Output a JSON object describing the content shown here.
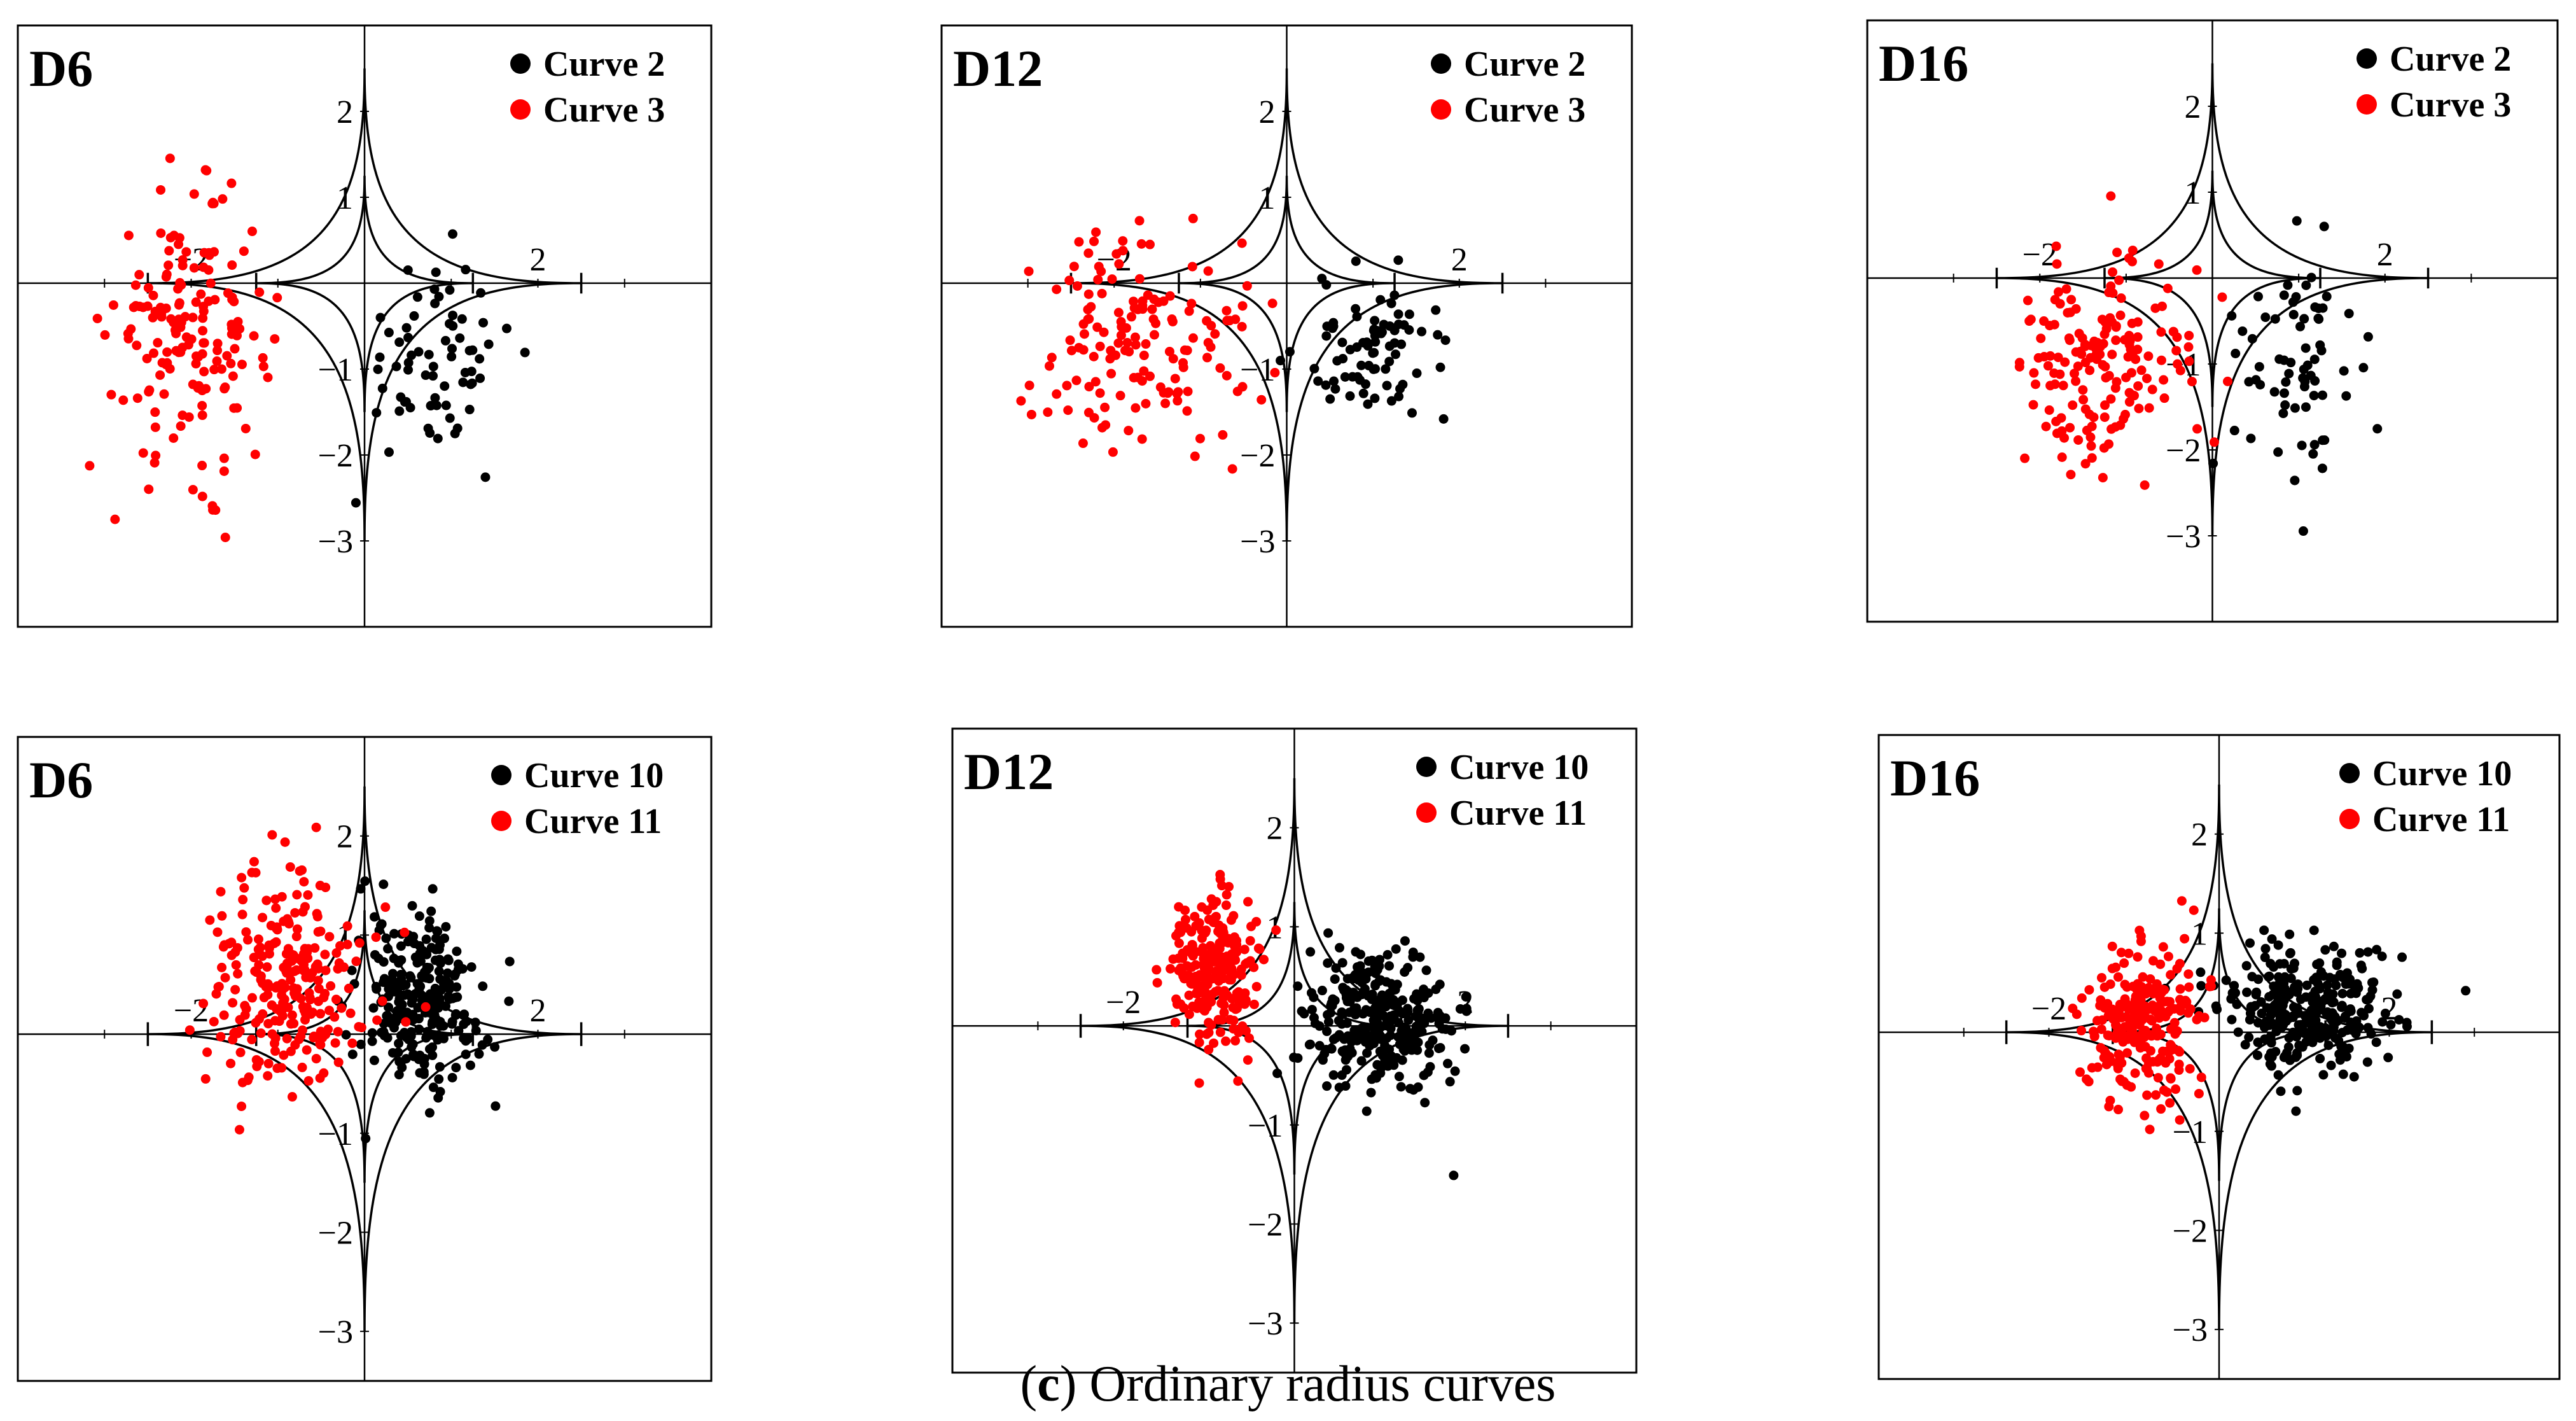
{
  "caption": {
    "letter": "c",
    "text": " Ordinary radius curves"
  },
  "colors": {
    "black_series": "#000000",
    "red_series": "#ff0000",
    "axis": "#000000"
  },
  "chart_data": [
    {
      "type": "scatter",
      "title": "D6",
      "row": 1,
      "col": 1,
      "xlim": [
        -4,
        4
      ],
      "ylim": [
        -4,
        3
      ],
      "ticks_x": [
        "−2",
        "2"
      ],
      "ticks_y": [
        "2",
        "1",
        "−1",
        "−2",
        "−3"
      ],
      "boundary": "astroid-like tolerance region (outer tips at (0,2.5),(0,-3),(±2.5,0); inner tips at (0,1.25),(0,-1.5),(±1.25,0))",
      "series": [
        {
          "name": "Curve 2",
          "color": "#000000",
          "cx": 0.8,
          "cy": -0.9,
          "sx": 0.45,
          "sy": 0.6,
          "n": 70
        },
        {
          "name": "Curve 3",
          "color": "#ff0000",
          "cx": -2.0,
          "cy": -0.6,
          "sx": 0.45,
          "sy": 0.75,
          "n": 170
        }
      ]
    },
    {
      "type": "scatter",
      "title": "D12",
      "row": 1,
      "col": 2,
      "xlim": [
        -4,
        4
      ],
      "ylim": [
        -4,
        3
      ],
      "ticks_x": [
        "−2",
        "2"
      ],
      "ticks_y": [
        "2",
        "1",
        "−1",
        "−2",
        "−3"
      ],
      "boundary": "astroid-like tolerance region",
      "series": [
        {
          "name": "Curve 2",
          "color": "#000000",
          "cx": 1.0,
          "cy": -0.8,
          "sx": 0.45,
          "sy": 0.4,
          "n": 80
        },
        {
          "name": "Curve 3",
          "color": "#ff0000",
          "cx": -1.6,
          "cy": -0.7,
          "sx": 0.6,
          "sy": 0.7,
          "n": 150
        }
      ]
    },
    {
      "type": "scatter",
      "title": "D16",
      "row": 1,
      "col": 3,
      "xlim": [
        -4,
        4
      ],
      "ylim": [
        -4,
        3
      ],
      "ticks_x": [
        "−2",
        "2"
      ],
      "ticks_y": [
        "2",
        "1",
        "−1",
        "−2",
        "−3"
      ],
      "boundary": "astroid-like tolerance region",
      "series": [
        {
          "name": "Curve 2",
          "color": "#000000",
          "cx": 0.9,
          "cy": -1.1,
          "sx": 0.35,
          "sy": 0.65,
          "n": 70
        },
        {
          "name": "Curve 3",
          "color": "#ff0000",
          "cx": -1.3,
          "cy": -1.0,
          "sx": 0.5,
          "sy": 0.65,
          "n": 170
        }
      ]
    },
    {
      "type": "scatter",
      "title": "D6",
      "row": 2,
      "col": 1,
      "xlim": [
        -4,
        4
      ],
      "ylim": [
        -3.5,
        3
      ],
      "ticks_x": [
        "−2",
        "2"
      ],
      "ticks_y": [
        "2",
        "1",
        "−1",
        "−2",
        "−3"
      ],
      "boundary": "astroid-like tolerance region",
      "series": [
        {
          "name": "Curve 10",
          "color": "#000000",
          "cx": 0.65,
          "cy": 0.35,
          "sx": 0.35,
          "sy": 0.45,
          "n": 260
        },
        {
          "name": "Curve 11",
          "color": "#ff0000",
          "cx": -0.9,
          "cy": 0.5,
          "sx": 0.45,
          "sy": 0.55,
          "n": 260
        }
      ]
    },
    {
      "type": "scatter",
      "title": "D12",
      "row": 2,
      "col": 2,
      "xlim": [
        -4,
        4
      ],
      "ylim": [
        -3.5,
        3
      ],
      "ticks_x": [
        "−2",
        "2"
      ],
      "ticks_y": [
        "2",
        "1",
        "−1",
        "−2",
        "−3"
      ],
      "boundary": "astroid-like tolerance region",
      "series": [
        {
          "name": "Curve 10",
          "color": "#000000",
          "cx": 1.0,
          "cy": 0.05,
          "sx": 0.45,
          "sy": 0.35,
          "n": 300
        },
        {
          "name": "Curve 11",
          "color": "#ff0000",
          "cx": -0.95,
          "cy": 0.55,
          "sx": 0.28,
          "sy": 0.4,
          "n": 240
        }
      ]
    },
    {
      "type": "scatter",
      "title": "D16",
      "row": 2,
      "col": 3,
      "xlim": [
        -4,
        4
      ],
      "ylim": [
        -3.5,
        3
      ],
      "ticks_x": [
        "−2",
        "2"
      ],
      "ticks_y": [
        "2",
        "1",
        "−1",
        "−2",
        "−3"
      ],
      "boundary": "astroid-like tolerance region",
      "series": [
        {
          "name": "Curve 10",
          "color": "#000000",
          "cx": 1.0,
          "cy": 0.25,
          "sx": 0.5,
          "sy": 0.3,
          "n": 300
        },
        {
          "name": "Curve 11",
          "color": "#ff0000",
          "cx": -0.9,
          "cy": 0.1,
          "sx": 0.35,
          "sy": 0.4,
          "n": 240
        }
      ]
    }
  ]
}
